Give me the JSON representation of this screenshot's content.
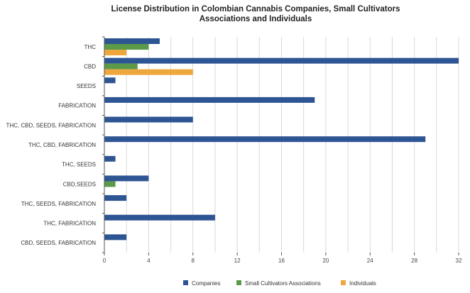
{
  "chart_data": {
    "type": "bar",
    "orientation": "horizontal",
    "title": "License Distribution in Colombian Cannabis Companies, Small Cultivators Associations and Individuals",
    "title_lines": [
      "License Distribution in Colombian Cannabis Companies, Small Cultivators",
      "Associations and Individuals"
    ],
    "xlabel": "",
    "ylabel": "",
    "xlim": [
      0,
      32
    ],
    "x_ticks": [
      0,
      4,
      8,
      12,
      16,
      20,
      24,
      28,
      32
    ],
    "grid": "vertical",
    "legend_position": "bottom",
    "categories": [
      "THC",
      "CBD",
      "SEEDS",
      "FABRICATION",
      "THC, CBD, SEEDS, FABRICATION",
      "THC, CBD, FABRICATION",
      "THC, SEEDS",
      "CBD,SEEDS",
      "THC, SEEDS, FABRICATION",
      "THC, FABRICATION",
      "CBD, SEEDS, FABRICATION"
    ],
    "series": [
      {
        "name": "Companies",
        "color": "#2e5593",
        "values": [
          5,
          32,
          1,
          19,
          8,
          29,
          1,
          4,
          2,
          10,
          2
        ]
      },
      {
        "name": "Small Cultivators Associations",
        "color": "#5a9a48",
        "values": [
          4,
          3,
          0,
          0,
          0,
          0,
          0,
          1,
          0,
          0,
          0
        ]
      },
      {
        "name": "Individuals",
        "color": "#eea73c",
        "values": [
          2,
          8,
          0,
          0,
          0,
          0,
          0,
          0,
          0,
          0,
          0
        ]
      }
    ]
  }
}
